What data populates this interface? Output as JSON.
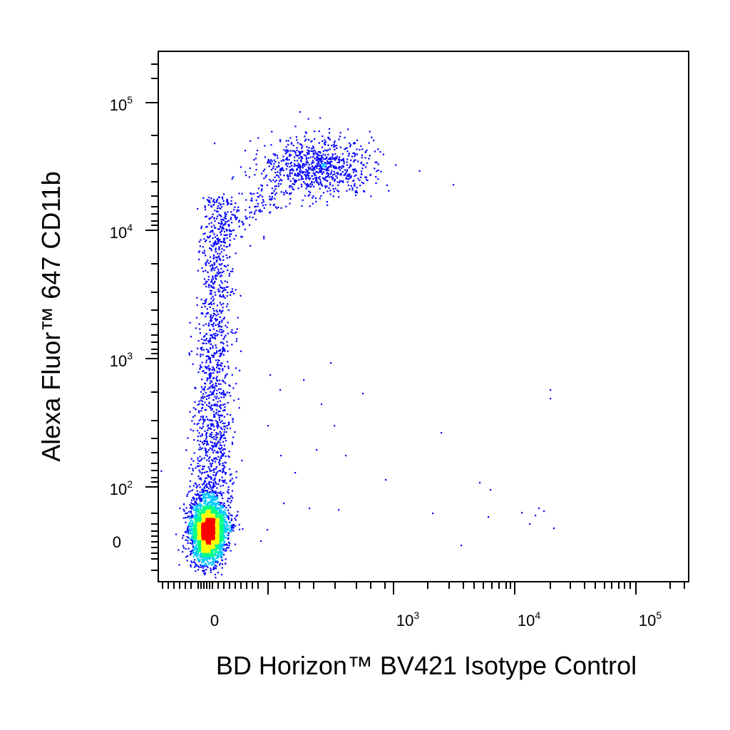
{
  "chart_data": {
    "type": "scatter",
    "style": "density-colored dot plot (flow cytometry)",
    "xlabel": "BD Horizon™ BV421 Isotype Control",
    "ylabel": "Alexa Fluor™ 647 CD11b",
    "x_scale": "biexponential",
    "y_scale": "biexponential",
    "x_ticks": [
      {
        "base": "0",
        "exp": ""
      },
      {
        "base": "10",
        "exp": "3"
      },
      {
        "base": "10",
        "exp": "4"
      },
      {
        "base": "10",
        "exp": "5"
      }
    ],
    "y_ticks": [
      {
        "base": "0",
        "exp": ""
      },
      {
        "base": "10",
        "exp": "2"
      },
      {
        "base": "10",
        "exp": "3"
      },
      {
        "base": "10",
        "exp": "4"
      },
      {
        "base": "10",
        "exp": "5"
      }
    ],
    "density_colors": [
      "#0000ff",
      "#00c8ff",
      "#00ff88",
      "#ffff00",
      "#ff0000"
    ],
    "populations": [
      {
        "description": "CD11b-negative cells",
        "x_center": 0,
        "y_center": 20,
        "relative_size": 0.55
      },
      {
        "description": "CD11b-low streak",
        "x_center": 0,
        "y_center": 500,
        "relative_size": 0.3
      },
      {
        "description": "CD11b-high cells",
        "x_center": 250,
        "y_center": 30000,
        "relative_size": 0.15
      }
    ],
    "grid": false,
    "legend": "none"
  }
}
